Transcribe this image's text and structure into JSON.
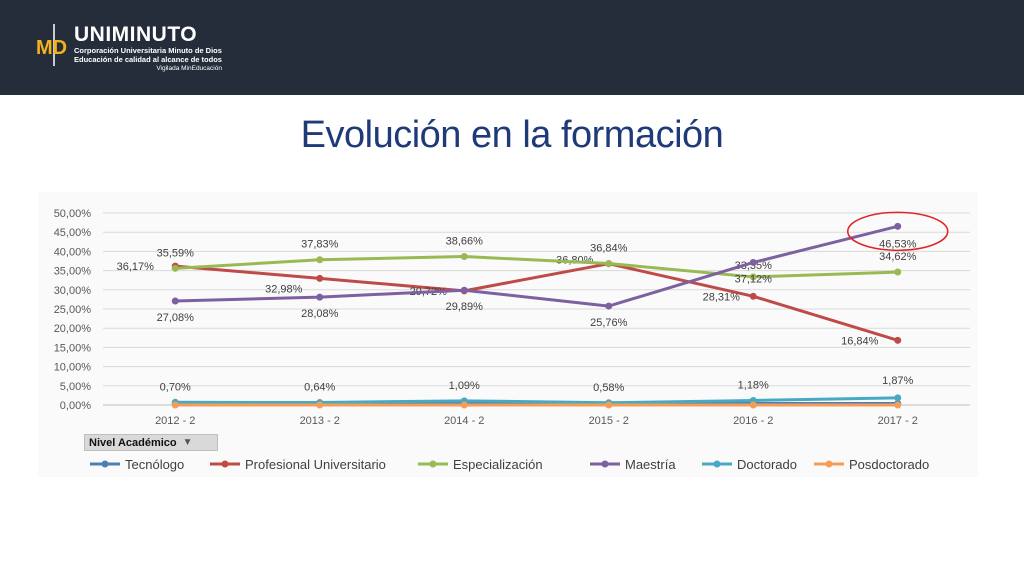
{
  "header": {
    "logo_name": "UNIMINUTO",
    "logo_sub1": "Corporación Universitaria Minuto de Dios",
    "logo_sub2": "Educación de calidad al alcance de todos",
    "logo_sub3": "Vigilada MinEducación",
    "logo_mark": "MD"
  },
  "slide": {
    "title": "Evolución en la formación"
  },
  "filter": {
    "label": "Nivel Académico",
    "icon": "filter-dropdown-icon"
  },
  "chart_data": {
    "type": "line",
    "categories": [
      "2012 - 2",
      "2013 - 2",
      "2014 - 2",
      "2015 - 2",
      "2016 - 2",
      "2017 - 2"
    ],
    "yticks": [
      "0,00%",
      "5,00%",
      "10,00%",
      "15,00%",
      "20,00%",
      "25,00%",
      "30,00%",
      "35,00%",
      "40,00%",
      "45,00%",
      "50,00%"
    ],
    "ylim": [
      0,
      50
    ],
    "grid": true,
    "legend_position": "bottom",
    "highlight": {
      "series": "Maestría",
      "index": 5,
      "color": "#e02424"
    },
    "series": [
      {
        "name": "Tecnólogo",
        "color": "#4a7ebb",
        "values": [
          0.3,
          0.3,
          0.4,
          0.3,
          0.4,
          0.4
        ],
        "labels": []
      },
      {
        "name": "Profesional Universitario",
        "color": "#be4b48",
        "values": [
          36.17,
          32.98,
          29.72,
          36.8,
          28.31,
          16.84
        ],
        "labels": [
          "36,17%",
          "32,98%",
          "29,72%",
          "36,80%",
          "28,31%",
          "16,84%"
        ]
      },
      {
        "name": "Especialización",
        "color": "#98b954",
        "values": [
          35.59,
          37.83,
          38.66,
          36.84,
          33.35,
          34.62
        ],
        "labels": [
          "35,59%",
          "37,83%",
          "38,66%",
          "36,84%",
          "33,35%",
          "34,62%"
        ]
      },
      {
        "name": "Maestría",
        "color": "#7d60a0",
        "values": [
          27.08,
          28.08,
          29.89,
          25.76,
          37.12,
          46.53
        ],
        "labels": [
          "27,08%",
          "28,08%",
          "29,89%",
          "25,76%",
          "37,12%",
          "46,53%"
        ]
      },
      {
        "name": "Doctorado",
        "color": "#46aac5",
        "values": [
          0.7,
          0.64,
          1.09,
          0.58,
          1.18,
          1.87
        ],
        "labels": [
          "0,70%",
          "0,64%",
          "1,09%",
          "0,58%",
          "1,18%",
          "1,87%"
        ]
      },
      {
        "name": "Posdoctorado",
        "color": "#f59d56",
        "values": [
          0,
          0,
          0,
          0,
          0,
          0
        ],
        "labels": []
      }
    ]
  }
}
